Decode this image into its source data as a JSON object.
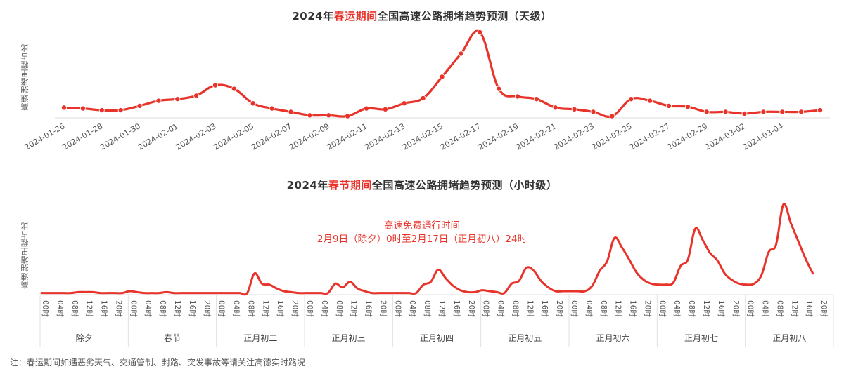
{
  "chart_data": [
    {
      "type": "line",
      "title": "2024年春运期间全国高速公路拥堵趋势预测（天级）",
      "title_parts": {
        "prefix": "2024年",
        "highlight": "春运期间",
        "suffix": "全国高速公路拥堵趋势预测（天级）"
      },
      "xlabel": "",
      "ylabel": "高速拥堵里程占比",
      "y_units": "relative (0-100, no y-axis ticks shown)",
      "markers": true,
      "grid": false,
      "x": [
        "2024-01-26",
        "2024-01-27",
        "2024-01-28",
        "2024-01-29",
        "2024-01-30",
        "2024-01-31",
        "2024-02-01",
        "2024-02-02",
        "2024-02-03",
        "2024-02-04",
        "2024-02-05",
        "2024-02-06",
        "2024-02-07",
        "2024-02-08",
        "2024-02-09",
        "2024-02-10",
        "2024-02-11",
        "2024-02-12",
        "2024-02-13",
        "2024-02-14",
        "2024-02-15",
        "2024-02-16",
        "2024-02-17",
        "2024-02-18",
        "2024-02-19",
        "2024-02-20",
        "2024-02-21",
        "2024-02-22",
        "2024-02-23",
        "2024-02-24",
        "2024-02-25",
        "2024-02-26",
        "2024-02-27",
        "2024-02-28",
        "2024-02-29",
        "2024-03-01",
        "2024-03-02",
        "2024-03-03",
        "2024-03-04",
        "2024-03-05",
        "2024-03-06"
      ],
      "values": [
        12,
        11,
        9,
        9,
        14,
        20,
        22,
        26,
        38,
        34,
        17,
        11,
        7,
        3,
        3,
        2,
        11,
        10,
        17,
        23,
        48,
        75,
        100,
        34,
        25,
        22,
        12,
        10,
        7,
        2,
        22,
        20,
        14,
        13,
        7,
        7,
        5,
        7,
        7,
        7,
        9
      ],
      "tick_labels": [
        "2024-01-26",
        "2024-01-28",
        "2024-01-30",
        "2024-02-01",
        "2024-02-03",
        "2024-02-05",
        "2024-02-07",
        "2024-02-09",
        "2024-02-11",
        "2024-02-13",
        "2024-02-15",
        "2024-02-17",
        "2024-02-19",
        "2024-02-21",
        "2024-02-23",
        "2024-02-25",
        "2024-02-27",
        "2024-02-29",
        "2024-03-02",
        "2024-03-04"
      ],
      "color": "#e8332a"
    },
    {
      "type": "line",
      "title": "2024年春节期间全国高速公路拥堵趋势预测（小时级）",
      "title_parts": {
        "prefix": "2024年",
        "highlight": "春节期间",
        "suffix": "全国高速公路拥堵趋势预测（小时级）"
      },
      "xlabel": "",
      "ylabel": "高速拥堵里程占比",
      "y_units": "relative (0-100, no y-axis ticks shown)",
      "markers": false,
      "grid": false,
      "hour_tick_labels": [
        "00时",
        "04时",
        "08时",
        "12时",
        "16时",
        "20时"
      ],
      "day_groups": [
        "除夕",
        "春节",
        "正月初二",
        "正月初三",
        "正月初四",
        "正月初五",
        "正月初六",
        "正月初七",
        "正月初八"
      ],
      "x_step_hours": 2,
      "values": [
        1,
        1,
        1,
        1,
        1,
        2,
        2,
        2,
        1,
        1,
        1,
        1,
        3,
        2,
        1,
        1,
        1,
        2,
        1,
        1,
        1,
        1,
        1,
        1,
        1,
        1,
        1,
        1,
        1,
        22,
        11,
        10,
        6,
        3,
        2,
        1,
        1,
        1,
        1,
        1,
        11,
        7,
        13,
        6,
        3,
        1,
        1,
        1,
        1,
        1,
        1,
        1,
        10,
        13,
        26,
        17,
        9,
        4,
        2,
        2,
        4,
        3,
        2,
        1,
        11,
        14,
        28,
        25,
        14,
        7,
        3,
        3,
        3,
        3,
        3,
        9,
        25,
        35,
        60,
        50,
        37,
        23,
        15,
        11,
        10,
        10,
        12,
        30,
        37,
        70,
        58,
        44,
        36,
        22,
        15,
        11,
        10,
        11,
        20,
        45,
        53,
        96,
        76,
        57,
        38,
        22
      ],
      "annotation": [
        "高速免费通行时间",
        "2月9日（除夕）0时至2月17日（正月初八）24时"
      ],
      "color": "#e8332a"
    }
  ],
  "footer": {
    "note": "注：春运期间如遇恶劣天气、交通管制、封路、突发事故等请关注高德实时路况"
  }
}
